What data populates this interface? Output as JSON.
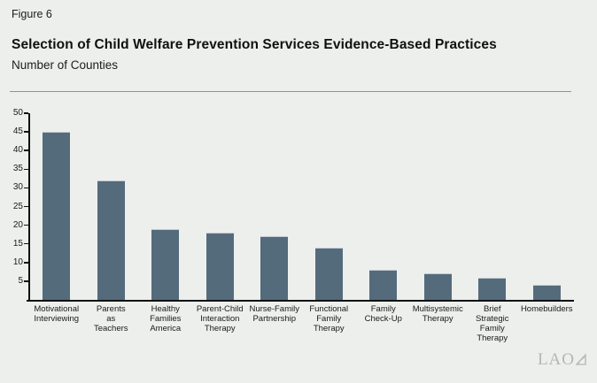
{
  "figure_label": "Figure 6",
  "title": "Selection of Child Welfare Prevention Services Evidence-Based Practices",
  "subtitle": "Number of Counties",
  "logo_text": "LAO",
  "colors": {
    "background": "#ECEFEC",
    "bar": "#546B7C",
    "bar_top_edge": "#C6CBD4",
    "axis": "#101010",
    "header_rule": "#8F9491",
    "logo": "#B3B6B9"
  },
  "chart_data": {
    "type": "bar",
    "title": "Selection of Child Welfare Prevention Services Evidence-Based Practices",
    "subtitle": "Number of Counties",
    "xlabel": "",
    "ylabel": "Number of Counties",
    "ylim": [
      0,
      50
    ],
    "yticks": [
      5,
      10,
      15,
      20,
      25,
      30,
      35,
      40,
      45,
      50
    ],
    "grid": false,
    "legend_position": "none",
    "categories": [
      "Motivational\nInterviewing",
      "Parents\nas\nTeachers",
      "Healthy\nFamilies\nAmerica",
      "Parent-Child\nInteraction\nTherapy",
      "Nurse-Family\nPartnership",
      "Functional\nFamily\nTherapy",
      "Family\nCheck-Up",
      "Multisystemic\nTherapy",
      "Brief\nStrategic\nFamily\nTherapy",
      "Homebuilders"
    ],
    "values": [
      45,
      32,
      19,
      18,
      17,
      14,
      8,
      7,
      6,
      4
    ]
  }
}
